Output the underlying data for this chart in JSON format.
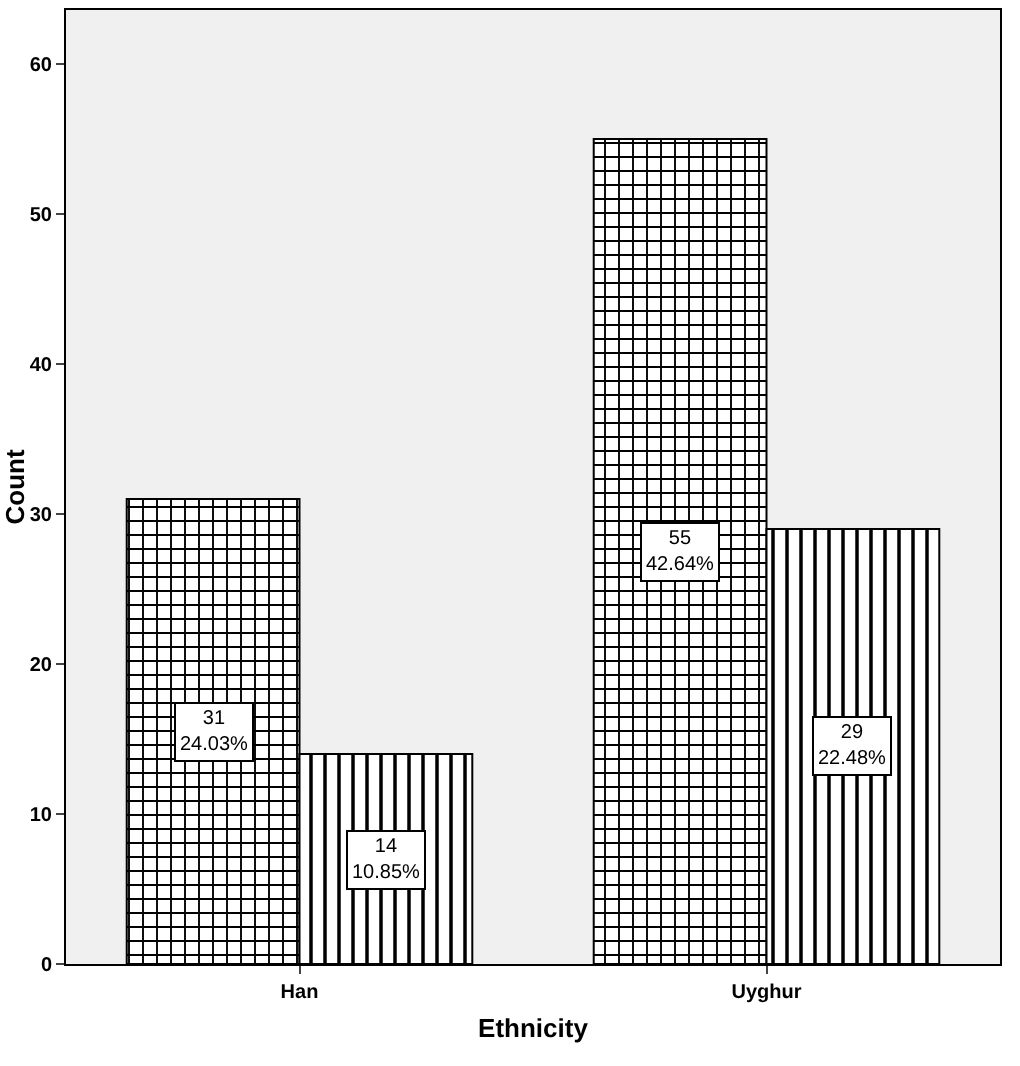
{
  "chart_data": {
    "type": "bar",
    "xlabel": "Ethnicity",
    "ylabel": "Count",
    "categories": [
      "Han",
      "Uyghur"
    ],
    "series": [
      {
        "color": "#000000",
        "values": [
          31,
          55
        ],
        "value_labels": [
          "31\n24.03%",
          "55\n42.64%"
        ]
      },
      {
        "color": "#000000",
        "values": [
          14,
          29
        ],
        "value_labels": [
          "14\n10.85%",
          "29\n22.48%"
        ]
      }
    ],
    "ylim": [
      0,
      63.6
    ],
    "yticks": [
      0,
      10,
      20,
      30,
      40,
      50,
      60
    ],
    "grid": false
  }
}
